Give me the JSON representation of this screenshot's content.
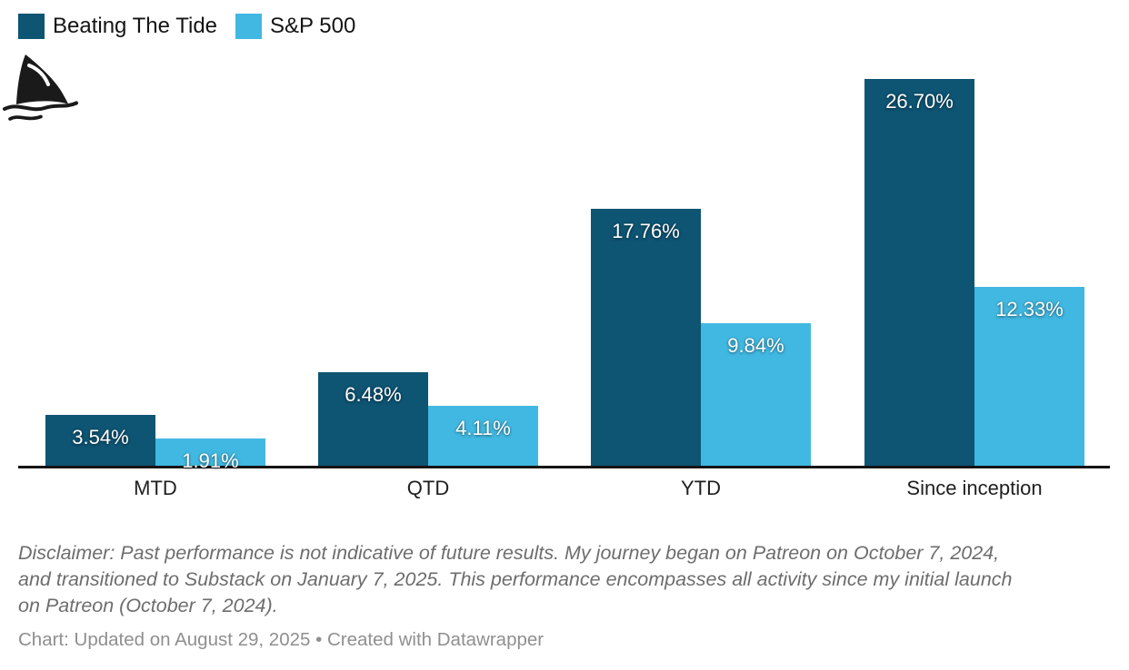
{
  "legend": {
    "items": [
      {
        "label": "Beating The Tide",
        "color": "#0e5473"
      },
      {
        "label": "S&P 500",
        "color": "#41b8e1"
      }
    ]
  },
  "chart_data": {
    "type": "bar",
    "title": "",
    "categories": [
      "MTD",
      "QTD",
      "YTD",
      "Since inception"
    ],
    "series": [
      {
        "name": "Beating The Tide",
        "color": "#0e5473",
        "values": [
          3.54,
          6.48,
          17.76,
          26.7
        ],
        "labels": [
          "3.54%",
          "6.48%",
          "17.76%",
          "26.70%"
        ]
      },
      {
        "name": "S&P 500",
        "color": "#41b8e1",
        "values": [
          1.91,
          4.11,
          9.84,
          12.33
        ],
        "labels": [
          "1.91%",
          "4.11%",
          "9.84%",
          "12.33%"
        ]
      }
    ],
    "xlabel": "",
    "ylabel": "",
    "ylim": [
      0,
      28
    ],
    "grid": false,
    "legend_position": "top-left",
    "value_label_color": "#ffffff",
    "axis_line_color": "#141414"
  },
  "footer": {
    "disclaimer_lines": [
      "Disclaimer: Past performance is not indicative of future results. My journey began on Patreon on October 7, 2024,",
      "and transitioned to Substack on January 7, 2025. This performance encompasses all activity since my initial launch",
      "on Patreon (October 7, 2024)."
    ],
    "credit": "Chart: Updated on August 29, 2025 • Created with Datawrapper"
  }
}
